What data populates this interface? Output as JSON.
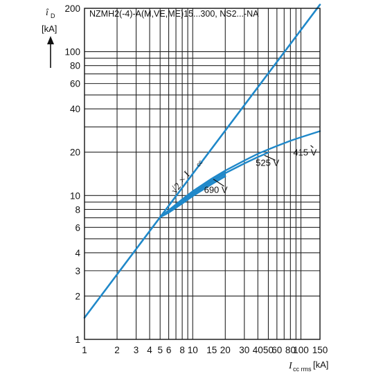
{
  "chart_data": {
    "type": "line",
    "title": "NZMH2(-4)-A(M,VE,ME)15...300, NS2...-NA",
    "xscale": "log",
    "yscale": "log",
    "xlim": [
      1,
      150
    ],
    "ylim": [
      1,
      200
    ],
    "grid": true,
    "x_ticks": [
      1,
      2,
      3,
      4,
      5,
      6,
      8,
      10,
      15,
      20,
      30,
      40,
      50,
      60,
      80,
      100,
      150
    ],
    "x_tick_labels": [
      "1",
      "2",
      "3",
      "4",
      "5",
      "6",
      "8",
      "10",
      "15",
      "20",
      "30",
      "40",
      "50",
      "60",
      "80",
      "100",
      "150"
    ],
    "y_ticks": [
      1,
      2,
      3,
      4,
      6,
      8,
      10,
      20,
      40,
      60,
      80,
      100,
      200
    ],
    "y_tick_labels": [
      "1",
      "2",
      "3",
      "4",
      "6",
      "8",
      "10",
      "20",
      "40",
      "60",
      "80",
      "100",
      "200"
    ],
    "ylabel_symbol": "î",
    "ylabel_subscript": "D",
    "ylabel_unit": "[kA]",
    "xlabel_symbol": "I",
    "xlabel_subscript": "cc rms",
    "xlabel_unit": "[kA]",
    "color": "#1f88c9",
    "series": [
      {
        "name": "√2 × Icc",
        "label_main": "√2 × I",
        "label_sub": "cc",
        "x": [
          1,
          150
        ],
        "y": [
          1.414,
          212.1
        ]
      },
      {
        "name": "415 V",
        "x": [
          5,
          6,
          8,
          10,
          15,
          20,
          30,
          40,
          50,
          60,
          80,
          100,
          150
        ],
        "y": [
          7.07,
          7.9,
          9.4,
          10.7,
          13.1,
          14.9,
          17.5,
          19.5,
          20.9,
          22.1,
          24.0,
          25.4,
          28.0
        ]
      },
      {
        "name": "525 V",
        "x": [
          5,
          6,
          8,
          10,
          15,
          20,
          30,
          40,
          50
        ],
        "y": [
          7.07,
          7.75,
          9.1,
          10.3,
          12.6,
          14.3,
          16.7,
          18.5,
          19.9
        ]
      },
      {
        "name": "690 V",
        "x": [
          5,
          6,
          8,
          10,
          15,
          20
        ],
        "y": [
          7.07,
          7.6,
          8.8,
          9.9,
          12.0,
          13.6
        ]
      }
    ],
    "annotations": [
      {
        "text": "415 V",
        "x": 140,
        "y": 20
      },
      {
        "text": "525 V",
        "x": 63,
        "y": 17
      },
      {
        "text": "690 V",
        "x": 21,
        "y": 11
      }
    ]
  }
}
